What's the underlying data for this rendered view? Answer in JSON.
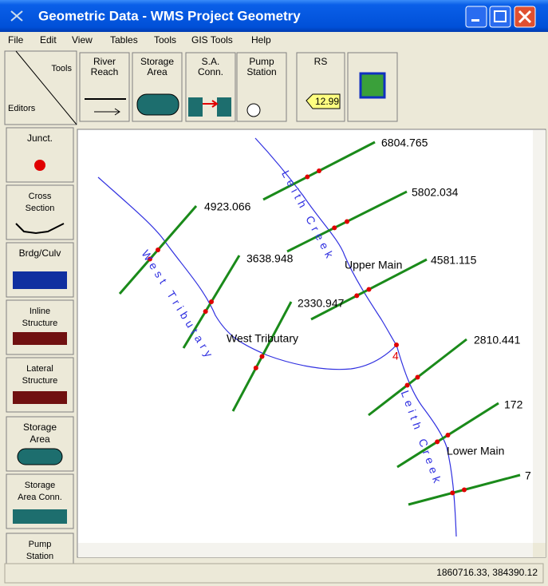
{
  "window": {
    "title": "Geometric Data - WMS Project Geometry"
  },
  "menu": [
    "File",
    "Edit",
    "View",
    "Tables",
    "Tools",
    "GIS Tools",
    "Help"
  ],
  "toolbar": {
    "tools_label": "Tools",
    "editors_label": "Editors",
    "buttons": [
      [
        "River",
        "Reach"
      ],
      [
        "Storage",
        "Area"
      ],
      [
        "S.A.",
        "Conn."
      ],
      [
        "Pump",
        "Station"
      ],
      [
        "RS"
      ]
    ],
    "rs_value": "12.99"
  },
  "palette": [
    [
      "Junct."
    ],
    [
      "Cross",
      "Section"
    ],
    [
      "Brdg/Culv"
    ],
    [
      "Inline",
      "Structure"
    ],
    [
      "Lateral",
      "Structure"
    ],
    [
      "Storage",
      "Area"
    ],
    [
      "Storage",
      "Area Conn."
    ],
    [
      "Pump",
      "Station"
    ]
  ],
  "canvas": {
    "cross_sections": [
      "6804.765",
      "5802.034",
      "4923.066",
      "3638.948",
      "4581.115",
      "2330.947",
      "2810.441",
      "172",
      "7"
    ],
    "reaches": [
      "Upper Main",
      "West Tributary",
      "Lower Main"
    ],
    "rivers": [
      "West Tributary",
      "Leith Creek",
      "Leith Creek"
    ],
    "junction": "4"
  },
  "status": "1860716.33, 384390.12"
}
